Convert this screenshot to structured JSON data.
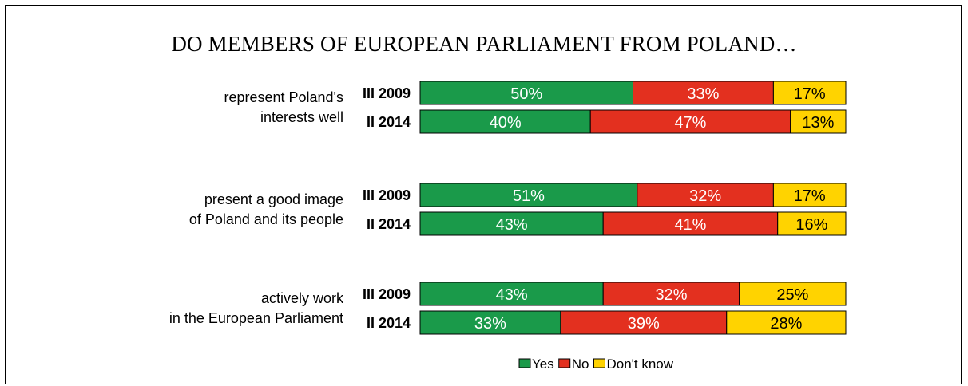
{
  "chart_data": {
    "type": "bar",
    "orientation": "horizontal",
    "stacked": true,
    "normalized": true,
    "title": "DO MEMBERS OF EUROPEAN PARLIAMENT FROM POLAND…",
    "groups": [
      {
        "label_lines": [
          "represent Poland's",
          "interests well"
        ],
        "rows": [
          {
            "wave": "III 2009",
            "values": [
              50,
              33,
              17
            ]
          },
          {
            "wave": "II 2014",
            "values": [
              40,
              47,
              13
            ]
          }
        ]
      },
      {
        "label_lines": [
          "present a good image",
          "of Poland and its people"
        ],
        "rows": [
          {
            "wave": "III 2009",
            "values": [
              51,
              32,
              17
            ]
          },
          {
            "wave": "II 2014",
            "values": [
              43,
              41,
              16
            ]
          }
        ]
      },
      {
        "label_lines": [
          "actively work",
          "in the European Parliament"
        ],
        "rows": [
          {
            "wave": "III 2009",
            "values": [
              43,
              32,
              25
            ]
          },
          {
            "wave": "II 2014",
            "values": [
              33,
              39,
              28
            ]
          }
        ]
      }
    ],
    "series": [
      {
        "name": "Yes",
        "color": "#1a9a4a",
        "text_color": "#ffffff"
      },
      {
        "name": "No",
        "color": "#e3301f",
        "text_color": "#ffffff"
      },
      {
        "name": "Don't know",
        "color": "#ffd300",
        "text_color": "#000000"
      }
    ],
    "value_suffix": "%",
    "legend_position": "bottom"
  }
}
